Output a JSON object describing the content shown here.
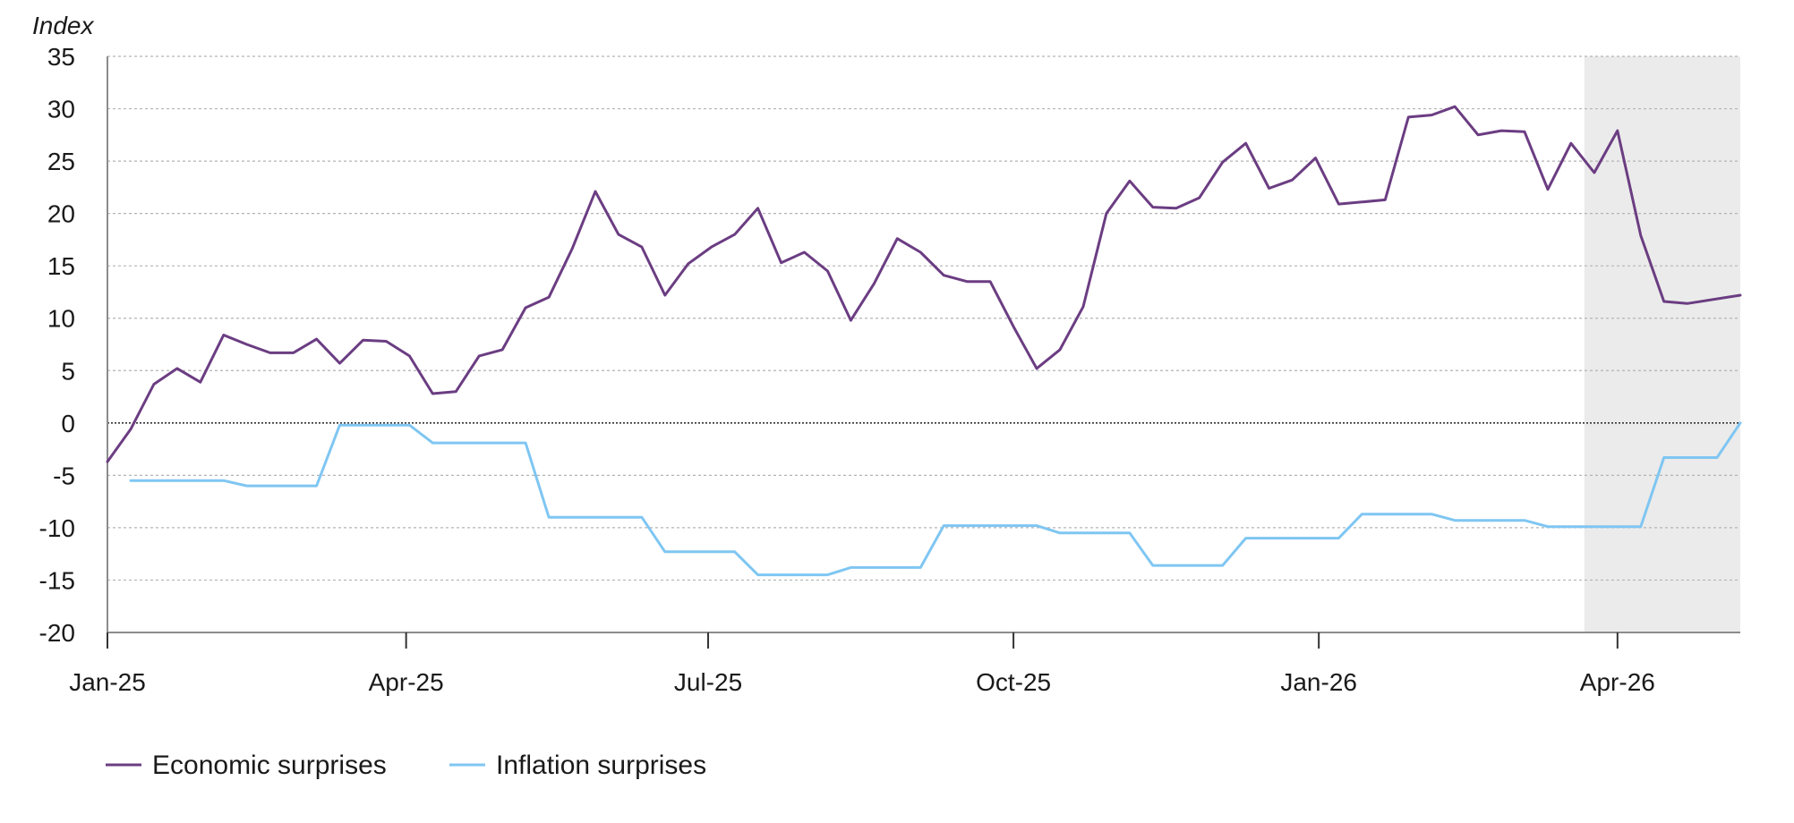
{
  "chart_data": {
    "type": "line",
    "title": "",
    "ylabel": "Index",
    "xlabel": "",
    "ylim": [
      -20,
      35
    ],
    "yticks": [
      35,
      30,
      25,
      20,
      15,
      10,
      5,
      0,
      -5,
      -10,
      -15,
      -20
    ],
    "xlim": [
      "2025-01-01",
      "2026-05-08"
    ],
    "xticks": [
      {
        "label": "Jan-25",
        "date": "2025-01-01"
      },
      {
        "label": "Apr-25",
        "date": "2025-04-01"
      },
      {
        "label": "Jul-25",
        "date": "2025-07-01"
      },
      {
        "label": "Oct-25",
        "date": "2025-10-01"
      },
      {
        "label": "Jan-26",
        "date": "2026-01-01"
      },
      {
        "label": "Apr-26",
        "date": "2026-04-01"
      }
    ],
    "grid": "horizontal dotted",
    "zero_line": true,
    "shaded_region": {
      "from": "2026-03-22",
      "to": "2026-05-08",
      "color": "#ebebeb"
    },
    "legend_position": "bottom-left",
    "series": [
      {
        "name": "Economic surprises",
        "color": "#6b3d82",
        "points": [
          [
            "2025-01-01",
            -3.7
          ],
          [
            "2025-01-08",
            -0.6
          ],
          [
            "2025-01-15",
            3.7
          ],
          [
            "2025-01-22",
            5.2
          ],
          [
            "2025-01-29",
            3.9
          ],
          [
            "2025-02-05",
            8.4
          ],
          [
            "2025-02-12",
            7.5
          ],
          [
            "2025-02-19",
            6.7
          ],
          [
            "2025-02-26",
            6.7
          ],
          [
            "2025-03-05",
            8.0
          ],
          [
            "2025-03-12",
            5.7
          ],
          [
            "2025-03-19",
            7.9
          ],
          [
            "2025-03-26",
            7.8
          ],
          [
            "2025-04-02",
            6.4
          ],
          [
            "2025-04-09",
            2.8
          ],
          [
            "2025-04-16",
            3.0
          ],
          [
            "2025-04-23",
            6.4
          ],
          [
            "2025-04-30",
            7.0
          ],
          [
            "2025-05-07",
            11.0
          ],
          [
            "2025-05-14",
            12.0
          ],
          [
            "2025-05-21",
            16.6
          ],
          [
            "2025-05-28",
            22.1
          ],
          [
            "2025-06-04",
            18.0
          ],
          [
            "2025-06-11",
            16.8
          ],
          [
            "2025-06-18",
            12.2
          ],
          [
            "2025-06-25",
            15.2
          ],
          [
            "2025-07-02",
            16.8
          ],
          [
            "2025-07-09",
            18.0
          ],
          [
            "2025-07-16",
            20.5
          ],
          [
            "2025-07-23",
            15.3
          ],
          [
            "2025-07-30",
            16.3
          ],
          [
            "2025-08-06",
            14.5
          ],
          [
            "2025-08-13",
            9.8
          ],
          [
            "2025-08-20",
            13.3
          ],
          [
            "2025-08-27",
            17.6
          ],
          [
            "2025-09-03",
            16.3
          ],
          [
            "2025-09-10",
            14.1
          ],
          [
            "2025-09-17",
            13.5
          ],
          [
            "2025-09-24",
            13.5
          ],
          [
            "2025-10-01",
            9.2
          ],
          [
            "2025-10-08",
            5.2
          ],
          [
            "2025-10-15",
            7.0
          ],
          [
            "2025-10-22",
            11.1
          ],
          [
            "2025-10-29",
            20.0
          ],
          [
            "2025-11-05",
            23.1
          ],
          [
            "2025-11-12",
            20.6
          ],
          [
            "2025-11-19",
            20.5
          ],
          [
            "2025-11-26",
            21.5
          ],
          [
            "2025-12-03",
            24.9
          ],
          [
            "2025-12-10",
            26.7
          ],
          [
            "2025-12-17",
            22.4
          ],
          [
            "2025-12-24",
            23.2
          ],
          [
            "2025-12-31",
            25.3
          ],
          [
            "2026-01-07",
            20.9
          ],
          [
            "2026-01-14",
            21.1
          ],
          [
            "2026-01-21",
            21.3
          ],
          [
            "2026-01-28",
            29.2
          ],
          [
            "2026-02-04",
            29.4
          ],
          [
            "2026-02-11",
            30.2
          ],
          [
            "2026-02-18",
            27.5
          ],
          [
            "2026-02-25",
            27.9
          ],
          [
            "2026-03-04",
            27.8
          ],
          [
            "2026-03-11",
            22.3
          ],
          [
            "2026-03-18",
            26.7
          ],
          [
            "2026-03-25",
            23.9
          ],
          [
            "2026-04-01",
            27.9
          ],
          [
            "2026-04-08",
            17.9
          ],
          [
            "2026-04-15",
            11.6
          ],
          [
            "2026-04-22",
            11.4
          ],
          [
            "2026-05-08",
            12.2
          ]
        ]
      },
      {
        "name": "Inflation surprises",
        "color": "#7fc6f2",
        "points": [
          [
            "2025-01-08",
            -5.5
          ],
          [
            "2025-02-05",
            -5.5
          ],
          [
            "2025-02-12",
            -6.0
          ],
          [
            "2025-03-05",
            -6.0
          ],
          [
            "2025-03-12",
            -0.2
          ],
          [
            "2025-04-02",
            -0.2
          ],
          [
            "2025-04-09",
            -1.9
          ],
          [
            "2025-05-07",
            -1.9
          ],
          [
            "2025-05-14",
            -9.0
          ],
          [
            "2025-06-11",
            -9.0
          ],
          [
            "2025-06-18",
            -12.3
          ],
          [
            "2025-07-09",
            -12.3
          ],
          [
            "2025-07-16",
            -14.5
          ],
          [
            "2025-08-06",
            -14.5
          ],
          [
            "2025-08-13",
            -13.8
          ],
          [
            "2025-09-03",
            -13.8
          ],
          [
            "2025-09-10",
            -9.8
          ],
          [
            "2025-10-08",
            -9.8
          ],
          [
            "2025-10-15",
            -10.5
          ],
          [
            "2025-11-05",
            -10.5
          ],
          [
            "2025-11-12",
            -13.6
          ],
          [
            "2025-12-03",
            -13.6
          ],
          [
            "2025-12-10",
            -11.0
          ],
          [
            "2026-01-07",
            -11.0
          ],
          [
            "2026-01-14",
            -8.7
          ],
          [
            "2026-02-04",
            -8.7
          ],
          [
            "2026-02-11",
            -9.3
          ],
          [
            "2026-03-04",
            -9.3
          ],
          [
            "2026-03-11",
            -9.9
          ],
          [
            "2026-04-08",
            -9.9
          ],
          [
            "2026-04-15",
            -3.3
          ],
          [
            "2026-05-01",
            -3.3
          ],
          [
            "2026-05-08",
            0.0
          ]
        ]
      }
    ],
    "colors": {
      "gridline": "#b3b3b3",
      "axis": "#8c8c8c",
      "zero_line": "#333333"
    }
  }
}
